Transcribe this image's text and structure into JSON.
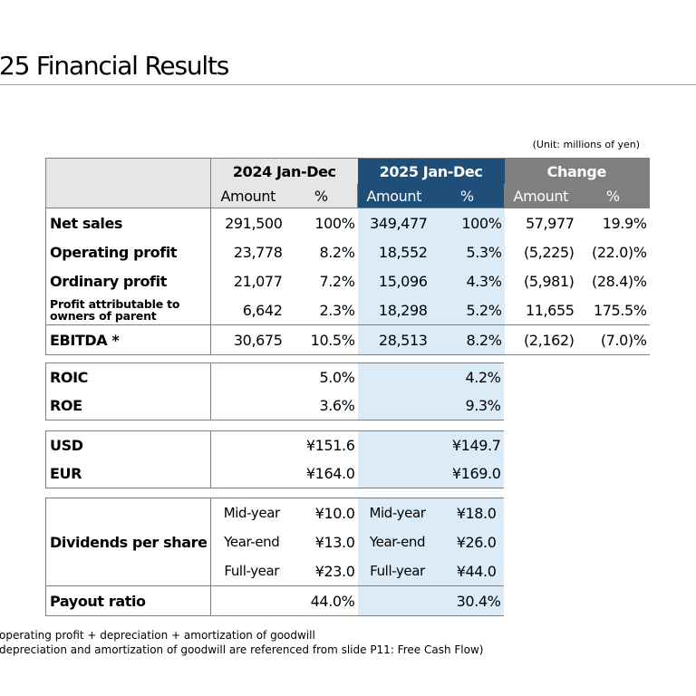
{
  "title": "25 Financial Results",
  "unit": "(Unit: millions of yen)",
  "headers": {
    "p2024": "2024 Jan-Dec",
    "p2025": "2025 Jan-Dec",
    "change": "Change",
    "amount": "Amount",
    "pct": "%"
  },
  "rows": [
    {
      "label": "Net sales",
      "a24": "291,500",
      "p24": "100%",
      "a25": "349,477",
      "p25": "100%",
      "ac": "57,977",
      "pc": "19.9%"
    },
    {
      "label": "Operating profit",
      "a24": "23,778",
      "p24": "8.2%",
      "a25": "18,552",
      "p25": "5.3%",
      "ac": "(5,225)",
      "pc": "(22.0)%"
    },
    {
      "label": "Ordinary profit",
      "a24": "21,077",
      "p24": "7.2%",
      "a25": "15,096",
      "p25": "4.3%",
      "ac": "(5,981)",
      "pc": "(28.4)%"
    },
    {
      "label_l1": "Profit attributable to",
      "label_l2": "owners of parent",
      "a24": "6,642",
      "p24": "2.3%",
      "a25": "18,298",
      "p25": "5.2%",
      "ac": "11,655",
      "pc": "175.5%"
    },
    {
      "label": "EBITDA *",
      "a24": "30,675",
      "p24": "10.5%",
      "a25": "28,513",
      "p25": "8.2%",
      "ac": "(2,162)",
      "pc": "(7.0)%"
    }
  ],
  "ratios": [
    {
      "label": "ROIC",
      "v24": "5.0%",
      "v25": "4.2%"
    },
    {
      "label": "ROE",
      "v24": "3.6%",
      "v25": "9.3%"
    }
  ],
  "fx": [
    {
      "label": "USD",
      "v24": "¥151.6",
      "v25": "¥149.7"
    },
    {
      "label": "EUR",
      "v24": "¥164.0",
      "v25": "¥169.0"
    }
  ],
  "dividends": {
    "label": "Dividends per share",
    "items": [
      {
        "name": "Mid-year",
        "v24": "¥10.0",
        "v25": "¥18.0"
      },
      {
        "name": "Year-end",
        "v24": "¥13.0",
        "v25": "¥26.0"
      },
      {
        "name": "Full-year",
        "v24": "¥23.0",
        "v25": "¥44.0"
      }
    ]
  },
  "payout": {
    "label": "Payout ratio",
    "v24": "44.0%",
    "v25": "30.4%"
  },
  "footnotes": [
    "operating profit + depreciation + amortization of goodwill",
    "depreciation and amortization of goodwill are referenced from slide P11: Free Cash Flow)"
  ]
}
